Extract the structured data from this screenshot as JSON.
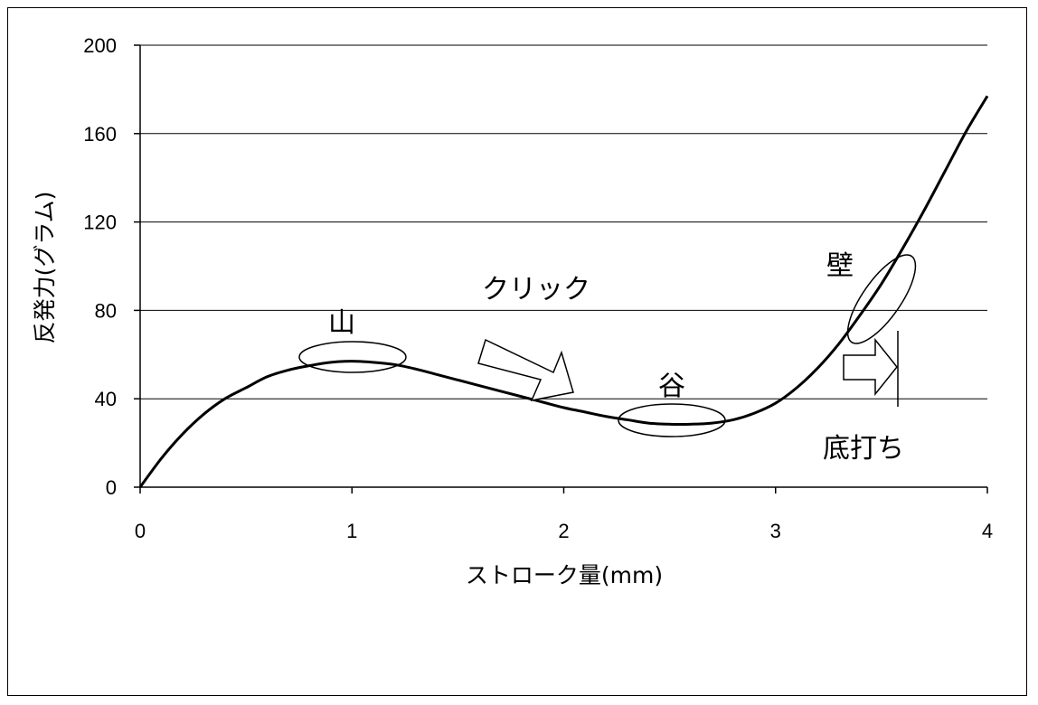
{
  "chart_data": {
    "type": "line",
    "title": "",
    "xlabel": "ストローク量(mm)",
    "ylabel": "反発力(グラム)",
    "xlim": [
      0,
      4
    ],
    "ylim": [
      0,
      200
    ],
    "xticks": [
      "0",
      "1",
      "2",
      "3",
      "4"
    ],
    "yticks": [
      "0",
      "40",
      "80",
      "120",
      "160",
      "200"
    ],
    "grid": "horizontal",
    "series": [
      {
        "x": [
          0,
          0.1,
          0.2,
          0.3,
          0.4,
          0.5,
          0.6,
          0.7,
          0.8,
          0.9,
          1.0,
          1.1,
          1.2,
          1.3,
          1.4,
          1.5,
          1.6,
          1.7,
          1.8,
          1.9,
          2.0,
          2.1,
          2.2,
          2.3,
          2.4,
          2.5,
          2.6,
          2.7,
          2.8,
          2.9,
          3.0,
          3.1,
          3.2,
          3.3,
          3.4,
          3.5,
          3.6,
          3.7,
          3.8,
          3.9,
          4.0
        ],
        "y": [
          0,
          13,
          24,
          33,
          40,
          45,
          50,
          53,
          55,
          56.5,
          57,
          56.5,
          55.5,
          53.5,
          51,
          48.5,
          46,
          43.5,
          41,
          38.5,
          36,
          34,
          32,
          30.5,
          29,
          28.5,
          28.5,
          29,
          30.5,
          33.5,
          38,
          45,
          54,
          65,
          78,
          92,
          108,
          125,
          143,
          161,
          177
        ]
      }
    ],
    "annotations": [
      {
        "label": "山",
        "x": 1.0,
        "y": 57
      },
      {
        "label": "クリック",
        "x": 1.9,
        "y": 90
      },
      {
        "label": "谷",
        "x": 2.5,
        "y": 28.5
      },
      {
        "label": "壁",
        "x": 3.45,
        "y": 85
      },
      {
        "label": "底打ち",
        "x": 3.6,
        "y": 18
      }
    ]
  }
}
